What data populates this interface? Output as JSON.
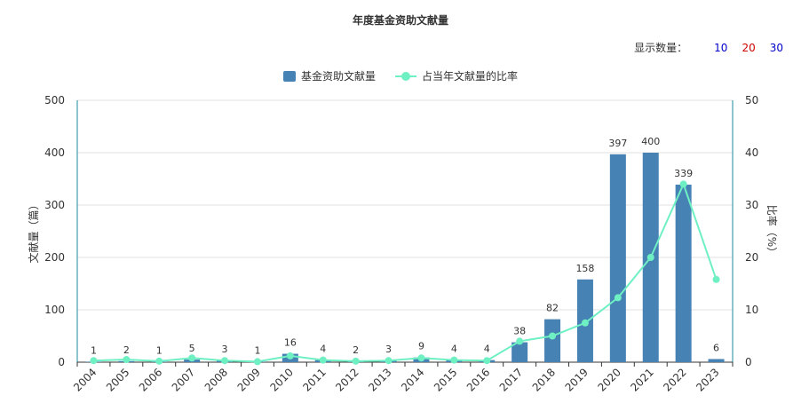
{
  "title": "年度基金资助文献量",
  "count_selector": {
    "label": "显示数量：",
    "options": [
      {
        "label": "10",
        "color": "#0000cc"
      },
      {
        "label": "20",
        "color": "#cc0000"
      },
      {
        "label": "30",
        "color": "#0000cc"
      }
    ]
  },
  "colors": {
    "bar": "#4682b4",
    "line": "#6ef0c3",
    "axis": "#1e8aa0",
    "grid": "#e0e0e0"
  },
  "chart_data": {
    "type": "bar",
    "categories": [
      "2004",
      "2005",
      "2006",
      "2007",
      "2008",
      "2009",
      "2010",
      "2011",
      "2012",
      "2013",
      "2014",
      "2015",
      "2016",
      "2017",
      "2018",
      "2019",
      "2020",
      "2021",
      "2022",
      "2023"
    ],
    "series": [
      {
        "name": "基金资助文献量",
        "type": "bar",
        "axis": "left",
        "values": [
          1,
          2,
          1,
          5,
          3,
          1,
          16,
          4,
          2,
          3,
          9,
          4,
          4,
          38,
          82,
          158,
          397,
          400,
          339,
          6
        ]
      },
      {
        "name": "占当年文献量的比率",
        "type": "line",
        "axis": "right",
        "values": [
          0.3,
          0.5,
          0.2,
          0.8,
          0.3,
          0.1,
          1.2,
          0.4,
          0.2,
          0.3,
          0.8,
          0.4,
          0.3,
          4.0,
          5.0,
          7.5,
          12.3,
          20.0,
          34.0,
          15.8
        ]
      }
    ],
    "ylabel": "文献量（篇）",
    "y2label": "比率（%）",
    "ylim": [
      0,
      500
    ],
    "y2lim": [
      0,
      50
    ],
    "yticks": [
      "0",
      "100",
      "200",
      "300",
      "400",
      "500"
    ],
    "y2ticks": [
      "0",
      "10",
      "20",
      "30",
      "40",
      "50"
    ],
    "grid": true,
    "legend_position": "top-center"
  }
}
